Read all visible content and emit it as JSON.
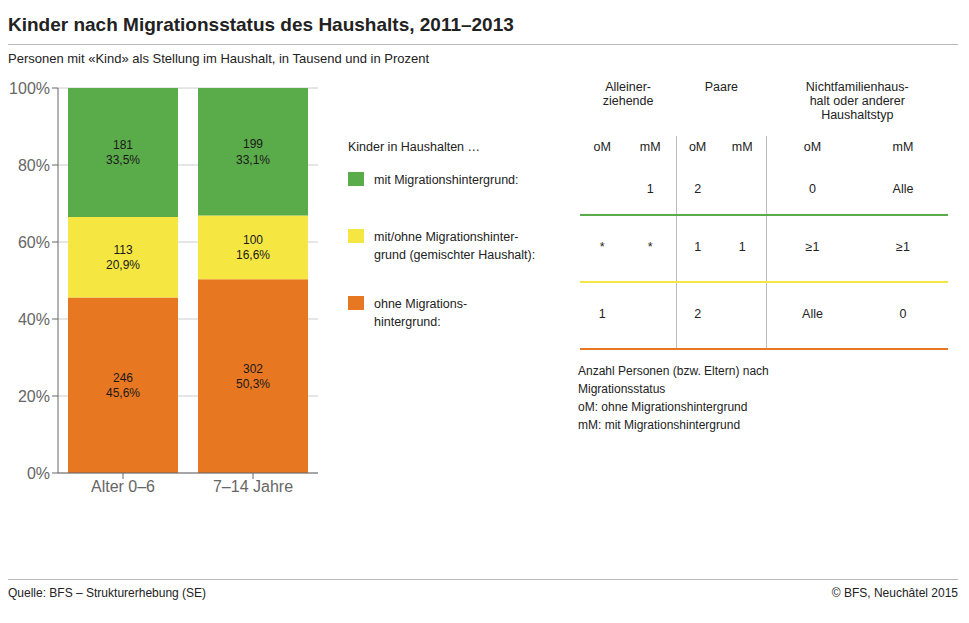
{
  "chart_data": {
    "type": "bar",
    "stacked": true,
    "data_labels": true,
    "grid": true,
    "title": "Kinder nach Migrationsstatus des Haushalts, 2011–2013",
    "subtitle": "Personen mit «Kind» als Stellung im Haushalt, in Tausend und in Prozent",
    "categories": [
      "Alter 0–6",
      "7–14 Jahre"
    ],
    "series": [
      {
        "color": "#E87722",
        "values": [
          45.6,
          50.3
        ],
        "value_labels": [
          "246\n45,6%",
          "302\n50,3%"
        ]
      },
      {
        "color": "#F5E642",
        "values": [
          20.9,
          16.6
        ],
        "value_labels": [
          "113\n20,9%",
          "100\n16,6%"
        ]
      },
      {
        "color": "#5AAB4A",
        "values": [
          33.5,
          33.1
        ],
        "value_labels": [
          "181\n33,5%",
          "199\n33,1%"
        ]
      }
    ],
    "ylim": [
      0,
      100
    ],
    "yticks": [
      {
        "value": 0,
        "label": "0%"
      },
      {
        "value": 20,
        "label": "20%"
      },
      {
        "value": 40,
        "label": "40%"
      },
      {
        "value": 60,
        "label": "60%"
      },
      {
        "value": 80,
        "label": "80%"
      },
      {
        "value": 100,
        "label": "100%"
      }
    ],
    "table": {
      "headers": [
        "Alleiner-\nziehende",
        "Paare",
        "Nichtfamilienhaus-\nhalt oder anderer\nHaushaltstyp"
      ],
      "row_title": "Kinder in Haushalten …",
      "subheaders": [
        "oM",
        "mM",
        "oM",
        "mM",
        "oM",
        "mM"
      ],
      "rows": [
        {
          "label": "mit Migrationshintergrund:",
          "color": "#5AAB4A",
          "cells": [
            null,
            "1",
            "2",
            null,
            "0",
            "Alle"
          ]
        },
        {
          "label": "mit/ohne Migrationshinter-\ngrund (gemischter Haushalt):",
          "color": "#F5E642",
          "cells": [
            "*",
            "*",
            "1",
            "1",
            "≥1",
            "≥1"
          ]
        },
        {
          "label": "ohne Migrations-\nhintergrund:",
          "color": "#E87722",
          "cells": [
            "1",
            null,
            "2",
            null,
            "Alle",
            "0"
          ]
        }
      ]
    },
    "footnote": "Anzahl Personen (bzw. Eltern) nach\nMigrationsstatus\noM: ohne Migrationshintergrund\nmM: mit Migrationshintergrund",
    "source_left": "Quelle: BFS – Strukturerhebung (SE)",
    "source_right": "© BFS, Neuchâtel 2015"
  }
}
